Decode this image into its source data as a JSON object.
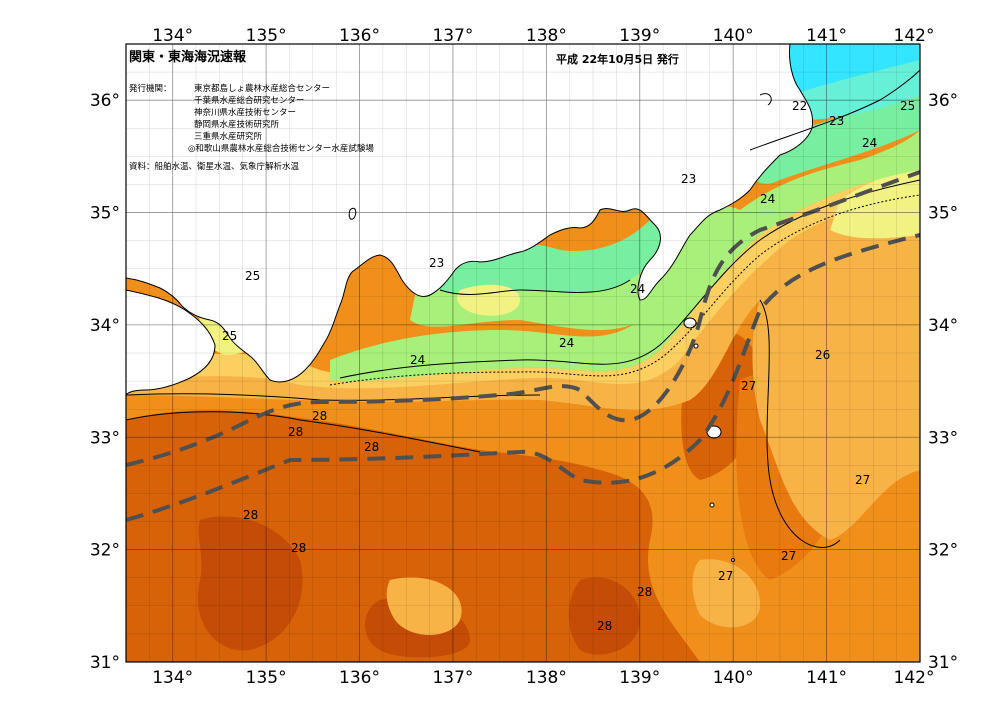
{
  "map": {
    "title": "関東・東海海況速報",
    "issue_date": "平成 22年10月5日 発行",
    "org_heading": "発行機関：",
    "organizations": [
      "東京都島しょ農林水産総合センター",
      "千葉県水産総合研究センター",
      "神奈川県水産技術センター",
      "静岡県水産技術研究所",
      "三重県水産研究所",
      "◎和歌山県農林水産総合技術センター水産試験場"
    ],
    "source": "資料：船舶水温、衛星水温、気象庁解析水温",
    "lon_ticks": [
      "134°",
      "135°",
      "136°",
      "137°",
      "138°",
      "139°",
      "140°",
      "141°",
      "142°"
    ],
    "lat_ticks": [
      "36°",
      "35°",
      "34°",
      "33°",
      "32°",
      "31°"
    ],
    "contour_labels": [
      "22",
      "23",
      "24",
      "25",
      "26",
      "27",
      "28"
    ],
    "colors": {
      "t21": "#33e5ff",
      "t22": "#66f0d8",
      "t23": "#78eea0",
      "t24": "#a8f07a",
      "t25": "#f2f282",
      "t25b": "#fbd060",
      "t26": "#f8b347",
      "t27": "#f0901a",
      "t27b": "#e87a10",
      "t28": "#d86208",
      "t29": "#c44c06",
      "land": "#ffffff",
      "grid": "#000000",
      "kuroshio": "#505050"
    }
  }
}
